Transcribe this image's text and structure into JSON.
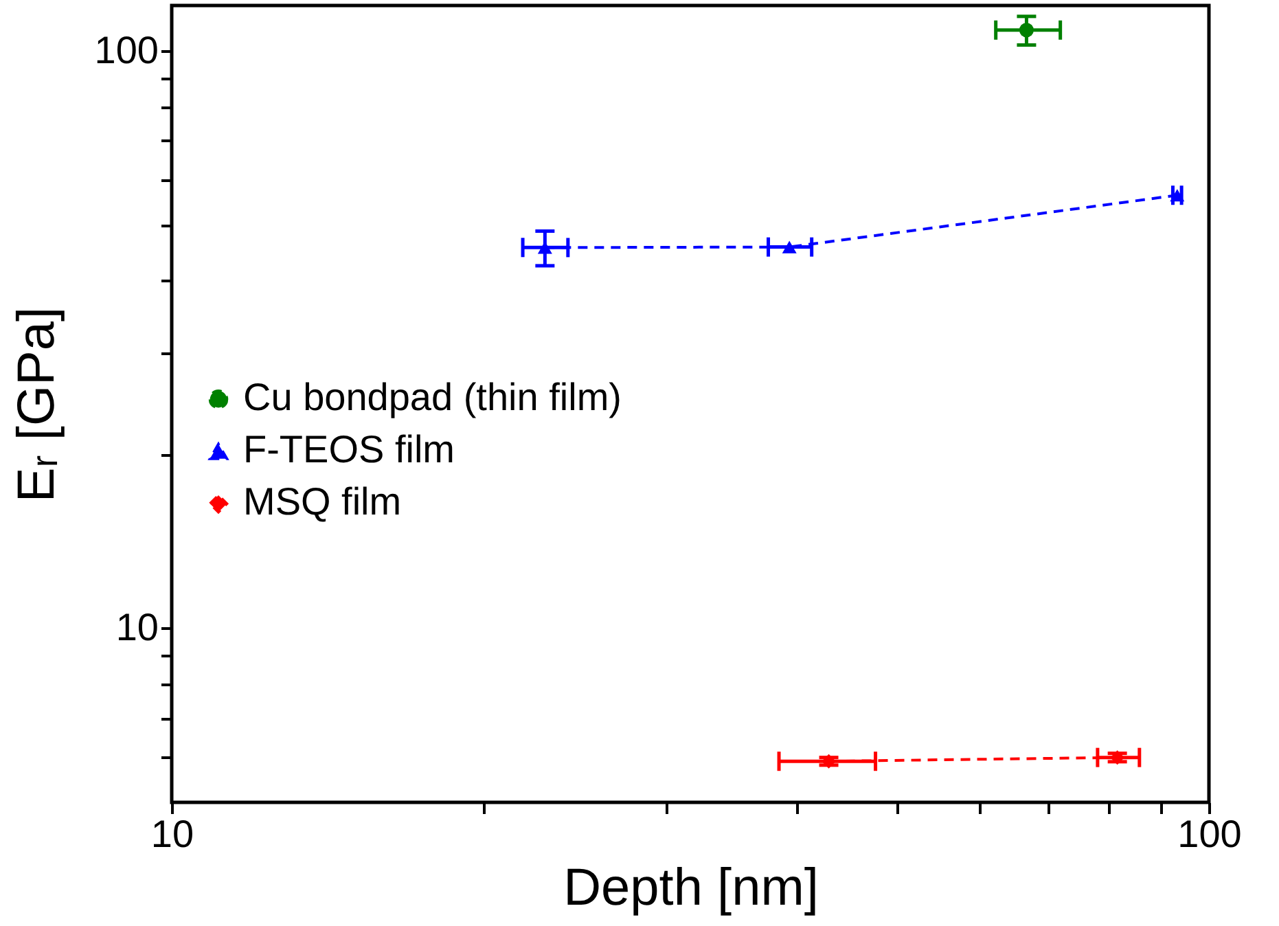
{
  "chart_data": {
    "type": "line",
    "xlabel": "Depth [nm]",
    "ylabel": "Eᵣ [GPa]",
    "log": "xy",
    "grid": false,
    "legend": "left",
    "line_style": "dashed",
    "xlim": [
      10,
      100
    ],
    "ylim": [
      5,
      120
    ],
    "xticks": [
      10,
      {
        "value": 20,
        "label": null
      },
      {
        "value": 30,
        "label": null
      },
      {
        "value": 40,
        "label": null
      },
      {
        "value": 50,
        "label": null
      },
      {
        "value": 60,
        "label": null
      },
      {
        "value": 70,
        "label": null
      },
      {
        "value": 80,
        "label": null
      },
      {
        "value": 90,
        "label": null
      },
      100
    ],
    "yticks": [
      {
        "value": 6,
        "label": null
      },
      {
        "value": 7,
        "label": null
      },
      {
        "value": 8,
        "label": null
      },
      {
        "value": 9,
        "label": null
      },
      10,
      {
        "value": 20,
        "label": null
      },
      {
        "value": 30,
        "label": null
      },
      {
        "value": 40,
        "label": null
      },
      {
        "value": 50,
        "label": null
      },
      {
        "value": 60,
        "label": null
      },
      {
        "value": 70,
        "label": null
      },
      {
        "value": 80,
        "label": null
      },
      {
        "value": 90,
        "label": null
      },
      100
    ],
    "series": [
      {
        "name": "Cu bondpad (thin film)",
        "color": "#008000",
        "marker": "circle",
        "x": [
          66.7
        ],
        "values": [
          108.8
        ],
        "errors": [
          [
            102.5,
            114.9
          ]
        ],
        "xerrors": [
          [
            62.3,
            71.9
          ]
        ]
      },
      {
        "name": "F-TEOS film",
        "color": "#0000ff",
        "marker": "triangle",
        "x": [
          22.9,
          39.4,
          93.2
        ],
        "values": [
          45.7,
          45.8,
          56.3
        ],
        "errors": [
          [
            42.5,
            48.8
          ],
          null,
          null
        ],
        "xerrors": [
          [
            21.8,
            24.1
          ],
          [
            37.6,
            41.4
          ],
          [
            92.3,
            94.1
          ]
        ]
      },
      {
        "name": "MSQ film",
        "color": "#ff0000",
        "marker": "diamond",
        "x": [
          43.0,
          81.6
        ],
        "values": [
          5.89,
          5.98
        ],
        "errors": [
          [
            5.8,
            5.98
          ],
          [
            5.88,
            6.08
          ]
        ],
        "xerrors": [
          [
            38.5,
            47.7
          ],
          [
            78.1,
            85.7
          ]
        ]
      }
    ]
  }
}
